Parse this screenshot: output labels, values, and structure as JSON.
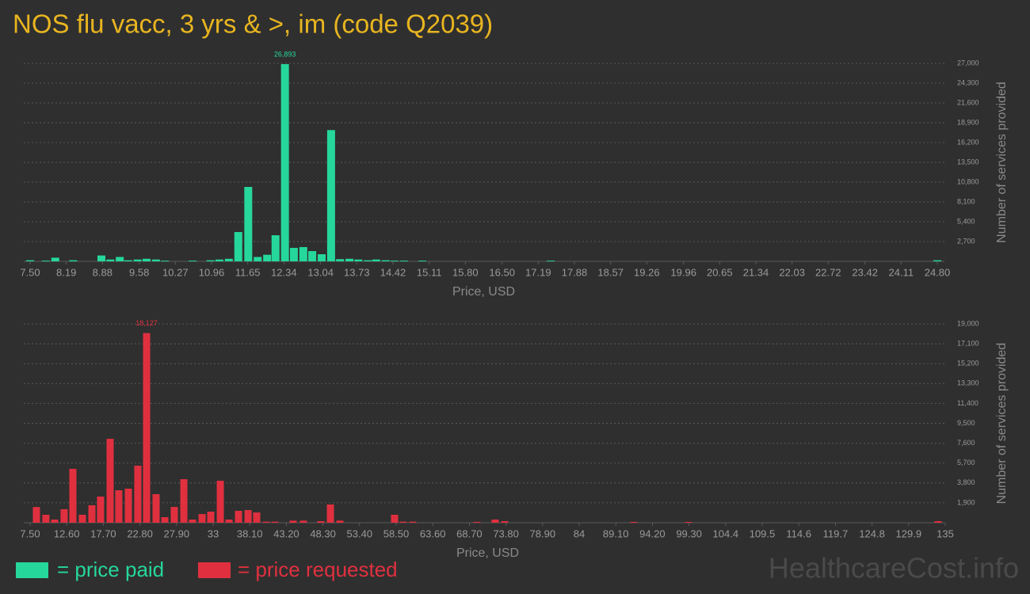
{
  "title": "NOS flu vacc, 3 yrs & >, im (code Q2039)",
  "watermark": "HealthcareCost.info",
  "chart_data": [
    {
      "type": "bar",
      "x_label": "Price, USD",
      "y_label": "Number of services provided",
      "xlim": [
        7.5,
        24.8
      ],
      "ylim": [
        0,
        27000
      ],
      "xticks": [
        {
          "value": 7.5,
          "label": "7.50"
        },
        8.19,
        8.88,
        9.58,
        10.27,
        10.96,
        11.65,
        12.34,
        13.04,
        13.73,
        14.42,
        15.11,
        {
          "value": 15.8,
          "label": "15.80"
        },
        {
          "value": 16.5,
          "label": "16.50"
        },
        17.19,
        17.88,
        18.57,
        19.26,
        19.96,
        20.65,
        21.34,
        22.03,
        22.72,
        23.42,
        24.11,
        {
          "value": 24.8,
          "label": "24.80"
        }
      ],
      "yticks": [
        {
          "value": 2700,
          "label": "2,700"
        },
        {
          "value": 5400,
          "label": "5,400"
        },
        {
          "value": 8100,
          "label": "8,100"
        },
        {
          "value": 10800,
          "label": "10,800"
        },
        {
          "value": 13500,
          "label": "13,500"
        },
        {
          "value": 16200,
          "label": "16,200"
        },
        {
          "value": 18900,
          "label": "18,900"
        },
        {
          "value": 21600,
          "label": "21,600"
        },
        {
          "value": 24300,
          "label": "24,300"
        },
        {
          "value": 27000,
          "label": "27,000"
        }
      ],
      "grid": true,
      "series": [
        {
          "name": "= price paid",
          "color": "#26d79c",
          "x": [
            7.5,
            7.8,
            7.98,
            8.32,
            8.86,
            9.03,
            9.21,
            9.37,
            9.55,
            9.72,
            9.9,
            10.07,
            10.6,
            10.94,
            11.11,
            11.29,
            11.47,
            11.66,
            11.84,
            12.02,
            12.18,
            12.36,
            12.53,
            12.71,
            12.88,
            13.06,
            13.24,
            13.41,
            13.59,
            13.76,
            13.94,
            14.1,
            14.28,
            14.45,
            14.63,
            14.98,
            17.43,
            24.8
          ],
          "values": [
            150,
            100,
            500,
            150,
            800,
            250,
            600,
            150,
            250,
            350,
            250,
            100,
            100,
            150,
            250,
            350,
            4000,
            10150,
            600,
            900,
            3560,
            26893,
            1840,
            1950,
            1400,
            970,
            17900,
            300,
            350,
            250,
            150,
            250,
            150,
            100,
            100,
            100,
            100,
            150
          ],
          "value_labels": [
            null,
            null,
            null,
            null,
            null,
            null,
            null,
            null,
            null,
            null,
            null,
            null,
            null,
            null,
            null,
            null,
            null,
            null,
            null,
            null,
            null,
            "26,893",
            null,
            null,
            null,
            null,
            null,
            null,
            null,
            null,
            null,
            null,
            null,
            null,
            null,
            null,
            null,
            null
          ]
        }
      ]
    },
    {
      "type": "bar",
      "x_label": "Price, USD",
      "y_label": "Number of services provided",
      "xlim": [
        7.5,
        135
      ],
      "ylim": [
        0,
        19000
      ],
      "xticks": [
        {
          "value": 7.5,
          "label": "7.50"
        },
        {
          "value": 12.6,
          "label": "12.60"
        },
        {
          "value": 17.7,
          "label": "17.70"
        },
        {
          "value": 22.8,
          "label": "22.80"
        },
        {
          "value": 27.9,
          "label": "27.90"
        },
        33,
        {
          "value": 38.1,
          "label": "38.10"
        },
        {
          "value": 43.2,
          "label": "43.20"
        },
        {
          "value": 48.3,
          "label": "48.30"
        },
        {
          "value": 53.4,
          "label": "53.40"
        },
        {
          "value": 58.5,
          "label": "58.50"
        },
        {
          "value": 63.6,
          "label": "63.60"
        },
        {
          "value": 68.7,
          "label": "68.70"
        },
        {
          "value": 73.8,
          "label": "73.80"
        },
        {
          "value": 78.9,
          "label": "78.90"
        },
        84,
        {
          "value": 89.1,
          "label": "89.10"
        },
        {
          "value": 94.2,
          "label": "94.20"
        },
        {
          "value": 99.3,
          "label": "99.30"
        },
        104.4,
        109.5,
        114.6,
        119.7,
        124.8,
        129.9,
        135
      ],
      "yticks": [
        {
          "value": 1900,
          "label": "1,900"
        },
        {
          "value": 3800,
          "label": "3,800"
        },
        {
          "value": 5700,
          "label": "5,700"
        },
        {
          "value": 7600,
          "label": "7,600"
        },
        {
          "value": 9500,
          "label": "9,500"
        },
        {
          "value": 11400,
          "label": "11,400"
        },
        {
          "value": 13300,
          "label": "13,300"
        },
        {
          "value": 15200,
          "label": "15,200"
        },
        {
          "value": 17100,
          "label": "17,100"
        },
        {
          "value": 19000,
          "label": "19,000"
        }
      ],
      "grid": true,
      "series": [
        {
          "name": "= price requested",
          "color": "#e0303f",
          "x": [
            8.38,
            9.7,
            10.92,
            12.24,
            13.46,
            14.78,
            16.11,
            17.32,
            18.65,
            19.86,
            21.19,
            22.51,
            23.73,
            25.05,
            26.27,
            27.59,
            28.92,
            30.13,
            31.46,
            32.67,
            34.0,
            35.22,
            36.54,
            37.87,
            39.07,
            40.39,
            41.61,
            44.15,
            45.58,
            48.01,
            49.34,
            50.66,
            58.28,
            59.49,
            60.81,
            69.75,
            72.29,
            73.62,
            91.61,
            99.22,
            134.0
          ],
          "values": [
            1500,
            760,
            300,
            1290,
            5150,
            760,
            1670,
            2500,
            8020,
            3100,
            3260,
            5450,
            18127,
            2730,
            530,
            1510,
            4160,
            300,
            830,
            1060,
            4010,
            300,
            1140,
            1210,
            980,
            100,
            100,
            200,
            200,
            150,
            1740,
            200,
            760,
            100,
            100,
            80,
            300,
            150,
            80,
            80,
            150
          ],
          "value_labels": [
            null,
            null,
            null,
            null,
            null,
            null,
            null,
            null,
            null,
            null,
            null,
            null,
            "18,127",
            null,
            null,
            null,
            null,
            null,
            null,
            null,
            null,
            null,
            null,
            null,
            null,
            null,
            null,
            null,
            null,
            null,
            null,
            null,
            null,
            null,
            null,
            null,
            null,
            null,
            null,
            null,
            null
          ]
        }
      ]
    }
  ]
}
